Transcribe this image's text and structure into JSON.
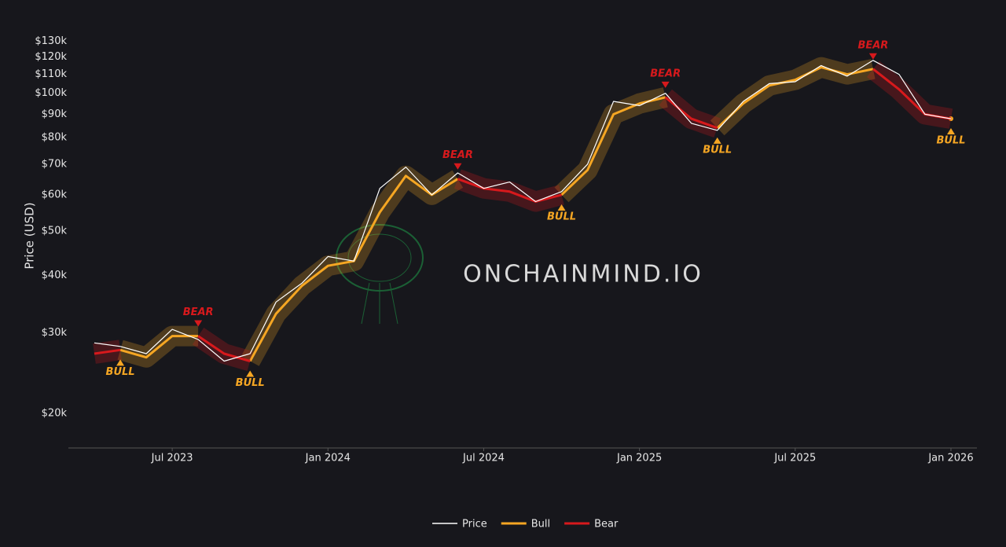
{
  "chart_data": {
    "type": "line",
    "y_label": "Price (USD)",
    "watermark": "ONCHAINMIND.IO",
    "log_scale": true,
    "x": [
      "2023-04",
      "2023-05",
      "2023-06",
      "2023-07",
      "2023-08",
      "2023-09",
      "2023-10",
      "2023-11",
      "2023-12",
      "2024-01",
      "2024-02",
      "2024-03",
      "2024-04",
      "2024-05",
      "2024-06",
      "2024-07",
      "2024-08",
      "2024-09",
      "2024-10",
      "2024-11",
      "2024-12",
      "2025-01",
      "2025-02",
      "2025-03",
      "2025-04",
      "2025-05",
      "2025-06",
      "2025-07",
      "2025-08",
      "2025-09",
      "2025-10",
      "2025-11",
      "2025-12",
      "2026-01"
    ],
    "series": [
      {
        "name": "Price",
        "color": "#ffffff",
        "values": [
          28500,
          28000,
          27000,
          30500,
          29000,
          26000,
          27000,
          35000,
          38500,
          44000,
          43000,
          62000,
          69000,
          60000,
          67000,
          62000,
          64000,
          58000,
          61000,
          70000,
          96000,
          94000,
          100000,
          86000,
          83000,
          96000,
          105000,
          106000,
          115000,
          109000,
          118000,
          110000,
          90000,
          88000
        ]
      },
      {
        "name": "Bull",
        "color": "#f5a623",
        "values": [
          null,
          27500,
          26500,
          29500,
          29500,
          null,
          26000,
          33000,
          38000,
          42000,
          43000,
          55000,
          66000,
          60000,
          65000,
          null,
          null,
          null,
          60000,
          68000,
          90000,
          95000,
          98000,
          null,
          84000,
          95000,
          104000,
          107000,
          114000,
          110000,
          113000,
          null,
          null,
          88000
        ]
      },
      {
        "name": "Bear",
        "color": "#d7191c",
        "values": [
          27000,
          27500,
          null,
          null,
          29500,
          27000,
          26000,
          null,
          null,
          null,
          null,
          null,
          null,
          null,
          65000,
          62000,
          61000,
          58000,
          60000,
          null,
          null,
          null,
          98000,
          88000,
          84000,
          null,
          null,
          null,
          null,
          null,
          113000,
          102000,
          90000,
          88000
        ]
      }
    ],
    "annotations": [
      {
        "text": "BULL",
        "x": "2023-05"
      },
      {
        "text": "BEAR",
        "x": "2023-08"
      },
      {
        "text": "BULL",
        "x": "2023-10"
      },
      {
        "text": "BEAR",
        "x": "2024-06"
      },
      {
        "text": "BULL",
        "x": "2024-10"
      },
      {
        "text": "BEAR",
        "x": "2025-02"
      },
      {
        "text": "BULL",
        "x": "2025-04"
      },
      {
        "text": "BEAR",
        "x": "2025-10"
      },
      {
        "text": "BULL",
        "x": "2026-01"
      }
    ],
    "xlim": [
      "2023-03",
      "2026-02"
    ],
    "xticks": [
      {
        "value": "2023-07",
        "label": "Jul 2023"
      },
      {
        "value": "2024-01",
        "label": "Jan 2024"
      },
      {
        "value": "2024-07",
        "label": "Jul 2024"
      },
      {
        "value": "2025-01",
        "label": "Jan 2025"
      },
      {
        "value": "2025-07",
        "label": "Jul 2025"
      },
      {
        "value": "2026-01",
        "label": "Jan 2026"
      }
    ],
    "ylim": [
      16800,
      142000
    ],
    "yticks": [
      {
        "value": 20000,
        "label": "$20k"
      },
      {
        "value": 30000,
        "label": "$30k"
      },
      {
        "value": 40000,
        "label": "$40k"
      },
      {
        "value": 50000,
        "label": "$50k"
      },
      {
        "value": 60000,
        "label": "$60k"
      },
      {
        "value": 70000,
        "label": "$70k"
      },
      {
        "value": 80000,
        "label": "$80k"
      },
      {
        "value": 90000,
        "label": "$90k"
      },
      {
        "value": 100000,
        "label": "$100k"
      },
      {
        "value": 110000,
        "label": "$110k"
      },
      {
        "value": 120000,
        "label": "$120k"
      },
      {
        "value": 130000,
        "label": "$130k"
      }
    ]
  }
}
